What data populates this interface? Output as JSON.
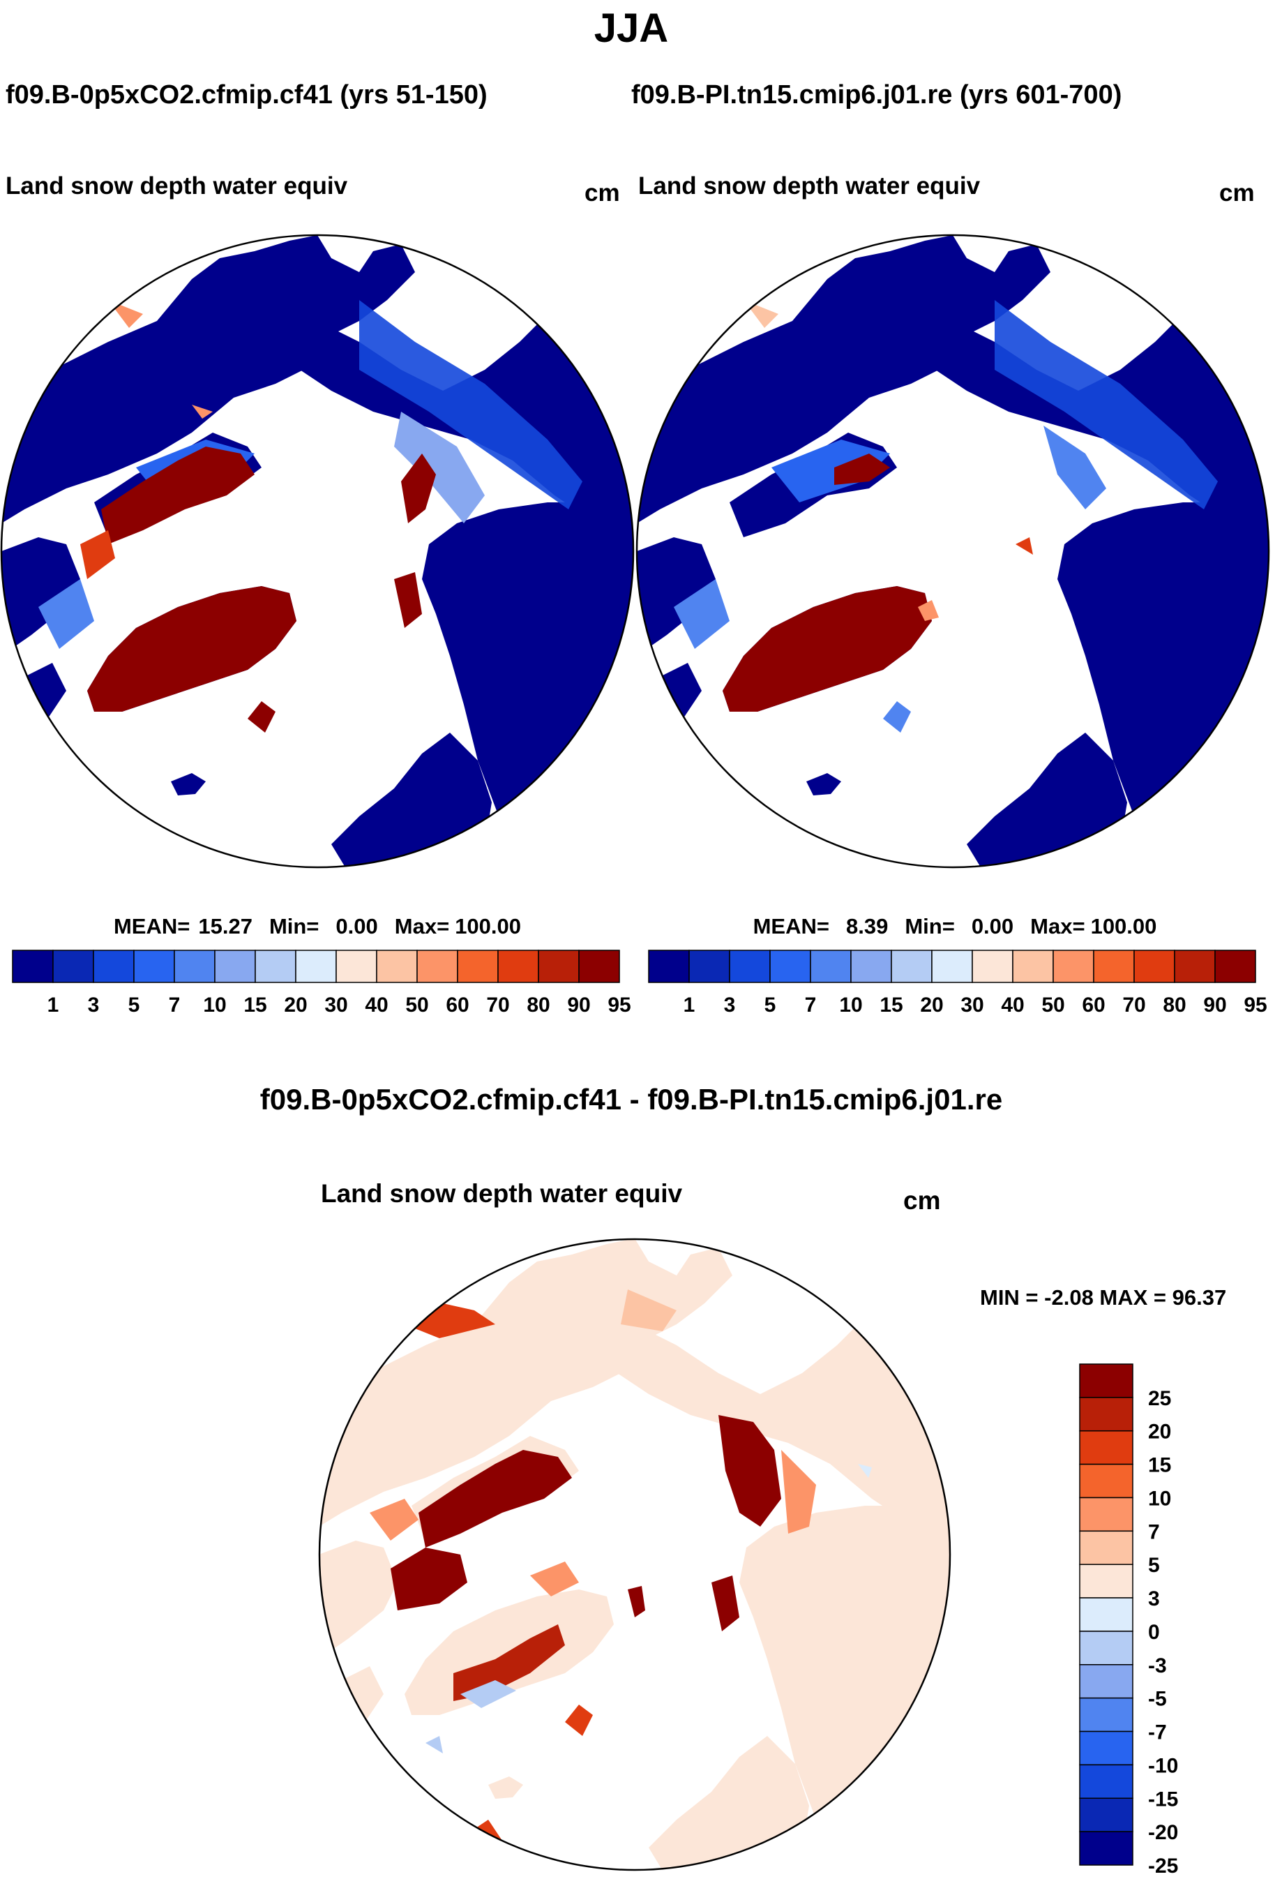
{
  "season": "JJA",
  "left_panel": {
    "case_label": "f09.B-0p5xCO2.cfmip.cf41 (yrs 51-150)",
    "variable": "Land snow depth water equiv",
    "units": "cm",
    "stats": {
      "mean_label": "MEAN=",
      "mean": "15.27",
      "min_label": "Min=",
      "min": "0.00",
      "max_label": "Max=",
      "max": "100.00"
    }
  },
  "right_panel": {
    "case_label": "f09.B-PI.tn15.cmip6.j01.re (yrs 601-700)",
    "variable": "Land snow depth water equiv",
    "units": "cm",
    "stats": {
      "mean_label": "MEAN=",
      "mean": "8.39",
      "min_label": "Min=",
      "min": "0.00",
      "max_label": "Max=",
      "max": "100.00"
    }
  },
  "diff_panel": {
    "title": "f09.B-0p5xCO2.cfmip.cf41 - f09.B-PI.tn15.cmip6.j01.re",
    "variable": "Land snow depth water equiv",
    "units": "cm",
    "minmax": "MIN =  -2.08 MAX =  96.37"
  },
  "colors": {
    "abs_scale": [
      "#00008c",
      "#0a28b4",
      "#1448dc",
      "#2864f0",
      "#5084f0",
      "#88a8f0",
      "#b4ccf4",
      "#dcecfc",
      "#fce6d8",
      "#fcc4a4",
      "#fc9468",
      "#f4642c",
      "#e03c10",
      "#b82008",
      "#8c0000"
    ],
    "diff_scale": [
      "#8c0000",
      "#b82008",
      "#e03c10",
      "#f4642c",
      "#fc9468",
      "#fcc4a4",
      "#fce6d8",
      "#dcecfc",
      "#b4ccf4",
      "#88a8f0",
      "#5084f0",
      "#2864f0",
      "#1448dc",
      "#0a28b4",
      "#00008c"
    ],
    "ocean": "#ffffff",
    "coast": "#000000"
  },
  "abs_colorbar_ticks": [
    "1",
    "3",
    "5",
    "7",
    "10",
    "15",
    "20",
    "30",
    "40",
    "50",
    "60",
    "70",
    "80",
    "90",
    "95"
  ],
  "diff_colorbar_ticks": [
    "25",
    "20",
    "15",
    "10",
    "7",
    "5",
    "3",
    "0",
    "-3",
    "-5",
    "-7",
    "-10",
    "-15",
    "-20",
    "-25"
  ]
}
